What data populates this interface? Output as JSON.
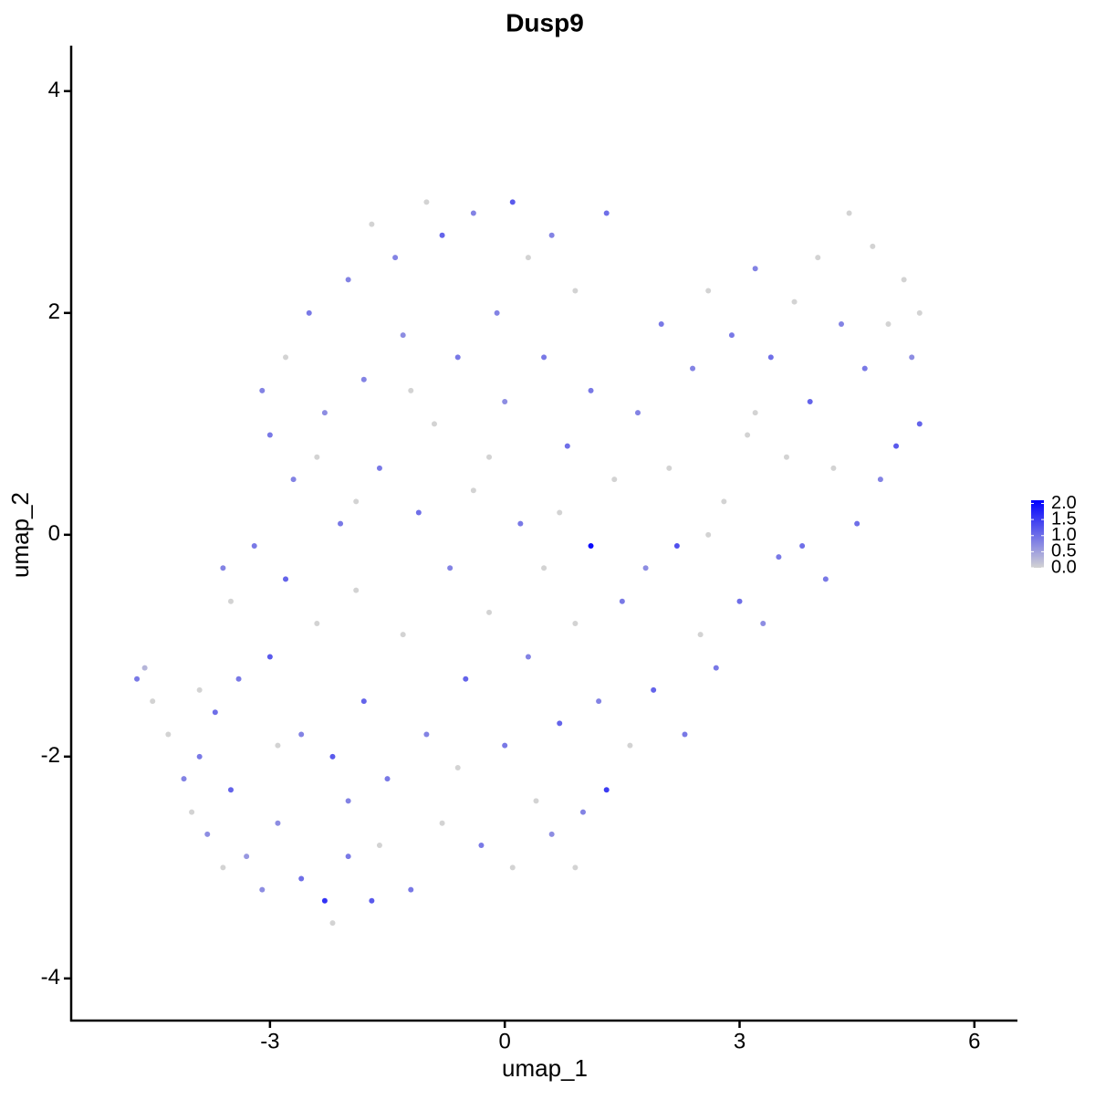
{
  "chart_data": {
    "type": "scatter",
    "title": "Dusp9",
    "xlabel": "umap_1",
    "ylabel": "umap_2",
    "xlim": [
      -5.54,
      6.55
    ],
    "ylim": [
      -4.38,
      4.41
    ],
    "xticks": [
      -3,
      0,
      3,
      6
    ],
    "yticks": [
      -4,
      -2,
      0,
      2,
      4
    ],
    "color_low": "#d3d3d3",
    "color_high": "#0000ff",
    "color_lim": [
      0,
      2.1
    ],
    "color_ticks": [
      {
        "value": 0,
        "label": "0.0"
      },
      {
        "value": 0.5,
        "label": "0.5"
      },
      {
        "value": 1,
        "label": "1.0"
      },
      {
        "value": 1.5,
        "label": "1.5"
      },
      {
        "value": 2,
        "label": "2.0"
      }
    ],
    "x": [
      -4.7,
      -4.6,
      -4.5,
      -4.3,
      -4.1,
      -4.0,
      -3.9,
      -3.8,
      -3.7,
      -3.6,
      -3.5,
      -3.5,
      -3.6,
      -3.4,
      -3.3,
      -3.2,
      -3.1,
      -3.0,
      -3.0,
      -2.9,
      -2.8,
      -2.8,
      -2.7,
      -2.6,
      -2.6,
      -2.5,
      -2.4,
      -2.3,
      -2.3,
      -2.2,
      -2.2,
      -2.1,
      -2.0,
      -2.0,
      -1.9,
      -1.8,
      -1.8,
      -1.7,
      -1.7,
      -1.6,
      -1.5,
      -1.4,
      -1.3,
      -1.3,
      -1.2,
      -1.1,
      -1.0,
      -1.0,
      -0.9,
      -0.8,
      -0.8,
      -0.7,
      -0.6,
      -0.5,
      -0.4,
      -0.4,
      -0.3,
      -0.2,
      -0.1,
      0,
      0,
      0.1,
      0.1,
      0.2,
      0.3,
      0.3,
      0.4,
      0.5,
      0.5,
      0.6,
      0.6,
      0.7,
      0.8,
      0.9,
      0.9,
      1.0,
      1.1,
      1.1,
      1.2,
      1.3,
      1.3,
      1.4,
      1.5,
      1.6,
      1.7,
      1.8,
      1.9,
      2.0,
      2.1,
      2.2,
      2.3,
      2.4,
      2.5,
      2.6,
      2.7,
      2.8,
      2.9,
      3.0,
      3.1,
      3.2,
      3.3,
      3.4,
      3.5,
      3.6,
      3.7,
      3.8,
      3.9,
      4.0,
      4.1,
      4.2,
      4.3,
      4.4,
      4.5,
      4.6,
      4.7,
      4.8,
      4.9,
      5.0,
      5.1,
      5.2,
      5.3,
      5.3,
      -3.9,
      -2.9,
      -1.6,
      -0.6,
      -2.4,
      -3.1,
      -1.9,
      0.7,
      -0.2,
      0.9,
      -2.0,
      -1.2,
      2.6,
      3.2
    ],
    "y": [
      -1.3,
      -1.2,
      -1.5,
      -1.8,
      -2.2,
      -2.5,
      -2.0,
      -2.7,
      -1.6,
      -3.0,
      -2.3,
      -0.6,
      -0.3,
      -1.3,
      -2.9,
      -0.1,
      -3.2,
      -1.1,
      0.9,
      -2.6,
      -0.4,
      1.6,
      0.5,
      -3.1,
      -1.8,
      2.0,
      -0.8,
      -3.3,
      1.1,
      -2.0,
      -3.5,
      0.1,
      -2.4,
      2.3,
      -0.5,
      -1.5,
      1.4,
      -3.3,
      2.8,
      0.6,
      -2.2,
      2.5,
      -0.9,
      1.8,
      -3.2,
      0.2,
      3.0,
      -1.8,
      1.0,
      2.7,
      -2.6,
      -0.3,
      1.6,
      -1.3,
      2.9,
      0.4,
      -2.8,
      -0.7,
      2.0,
      1.2,
      -1.9,
      3.0,
      -3.0,
      0.1,
      2.5,
      -1.1,
      -2.4,
      1.6,
      -0.3,
      2.7,
      -2.7,
      -1.7,
      0.8,
      2.2,
      -0.8,
      -2.5,
      -0.1,
      1.3,
      -1.5,
      2.9,
      -2.3,
      0.5,
      -0.6,
      -1.9,
      1.1,
      -0.3,
      -1.4,
      1.9,
      0.6,
      -0.1,
      -1.8,
      1.5,
      -0.9,
      2.2,
      -1.2,
      0.3,
      1.8,
      -0.6,
      0.9,
      2.4,
      -0.8,
      1.6,
      -0.2,
      0.7,
      2.1,
      -0.1,
      1.2,
      2.5,
      -0.4,
      0.6,
      1.9,
      2.9,
      0.1,
      1.5,
      2.6,
      0.5,
      1.9,
      0.8,
      2.3,
      1.6,
      1.0,
      2.0,
      -1.4,
      -1.9,
      -2.8,
      -2.1,
      0.7,
      1.3,
      0.3,
      0.2,
      0.7,
      -3.0,
      -2.9,
      1.3,
      0.0,
      1.1
    ],
    "values": [
      0.9,
      0.3,
      0,
      0,
      0.8,
      0,
      0.9,
      0.7,
      1.0,
      0,
      1.1,
      0,
      0.8,
      0.9,
      0.6,
      0.9,
      0.7,
      1.2,
      0.9,
      0.7,
      1.1,
      0,
      0.8,
      1.0,
      0.8,
      0.9,
      0,
      1.6,
      0.7,
      1.2,
      0,
      0.9,
      0.8,
      0.8,
      0,
      1.1,
      0.8,
      1.2,
      0,
      0.9,
      0.9,
      0.8,
      0,
      0.7,
      0.9,
      1.0,
      0,
      0.8,
      0,
      1.1,
      0,
      0.8,
      0.9,
      1.1,
      0.8,
      0,
      0.9,
      0,
      0.8,
      0.7,
      0.9,
      1.2,
      0,
      0.9,
      0,
      0.8,
      0,
      0.9,
      0,
      0.8,
      0.7,
      1.1,
      1.0,
      0,
      0,
      0.8,
      2.0,
      0.9,
      0.8,
      1.0,
      1.5,
      0,
      0.9,
      0,
      0.8,
      0.7,
      1.1,
      0.9,
      0,
      1.3,
      0.9,
      0.8,
      0,
      0,
      0.9,
      0,
      0.9,
      1.0,
      0,
      0.8,
      0.7,
      1.0,
      0.9,
      0,
      0,
      1.0,
      1.1,
      0,
      0.9,
      0,
      0.8,
      0,
      1.0,
      0.9,
      0,
      0.8,
      0,
      1.2,
      0,
      0.7,
      1.1,
      0,
      0,
      0,
      0,
      0,
      0,
      0.8,
      0,
      0,
      0,
      0,
      0.9,
      0,
      0,
      0
    ]
  }
}
